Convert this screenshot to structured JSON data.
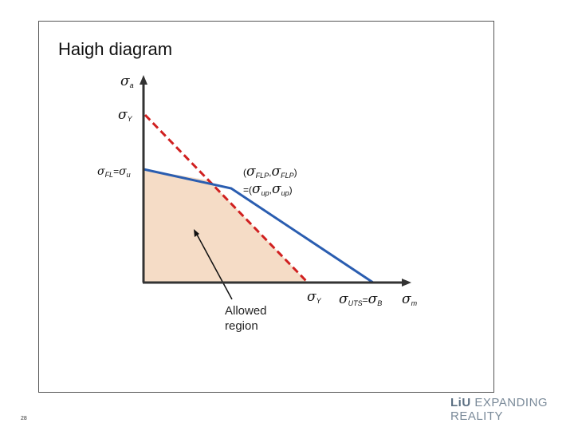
{
  "title": "Haigh diagram",
  "axis_y_label": "a",
  "axis_x_label": "m",
  "sigma_y_label": "Y",
  "sigma_fl": {
    "sub1": "FL",
    "eq": "=",
    "sub2": "u"
  },
  "point_label": {
    "line1_a": "FLP",
    "line1_b": "FLP",
    "line2_a": "up",
    "line2_b": "up"
  },
  "sigma_y_x_label": "Y",
  "sigma_uts": {
    "sub1": "UTS",
    "eq": "=",
    "sub2": "B"
  },
  "allowed_region": {
    "line1": "Allowed",
    "line2": "region"
  },
  "page_number": "28",
  "logo": {
    "mark": "LiU",
    "text": "EXPANDING REALITY"
  },
  "colors": {
    "region_fill": "#f5dcc6",
    "boundary_line": "#2a5db0",
    "yield_line": "#d02020",
    "axis": "#333333"
  }
}
